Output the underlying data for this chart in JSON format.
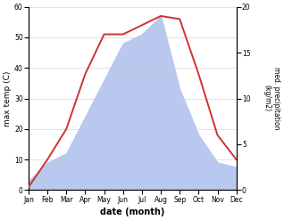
{
  "months": [
    "Jan",
    "Feb",
    "Mar",
    "Apr",
    "May",
    "Jun",
    "Jul",
    "Aug",
    "Sep",
    "Oct",
    "Nov",
    "Dec"
  ],
  "temperature": [
    1,
    10,
    20,
    38,
    51,
    51,
    54,
    57,
    56,
    38,
    18,
    10
  ],
  "precipitation": [
    1,
    3,
    4,
    8,
    12,
    16,
    17,
    19,
    11,
    6,
    3,
    2.5
  ],
  "temp_color": "#cc3333",
  "precip_color": "#b8c8ee",
  "left_ylabel": "max temp (C)",
  "right_ylabel": "med. precipitation\n(kg/m2)",
  "xlabel": "date (month)",
  "ylim_left": [
    0,
    60
  ],
  "ylim_right": [
    0,
    20
  ],
  "left_yticks": [
    0,
    10,
    20,
    30,
    40,
    50,
    60
  ],
  "right_yticks": [
    0,
    5,
    10,
    15,
    20
  ],
  "background_color": "#ffffff"
}
